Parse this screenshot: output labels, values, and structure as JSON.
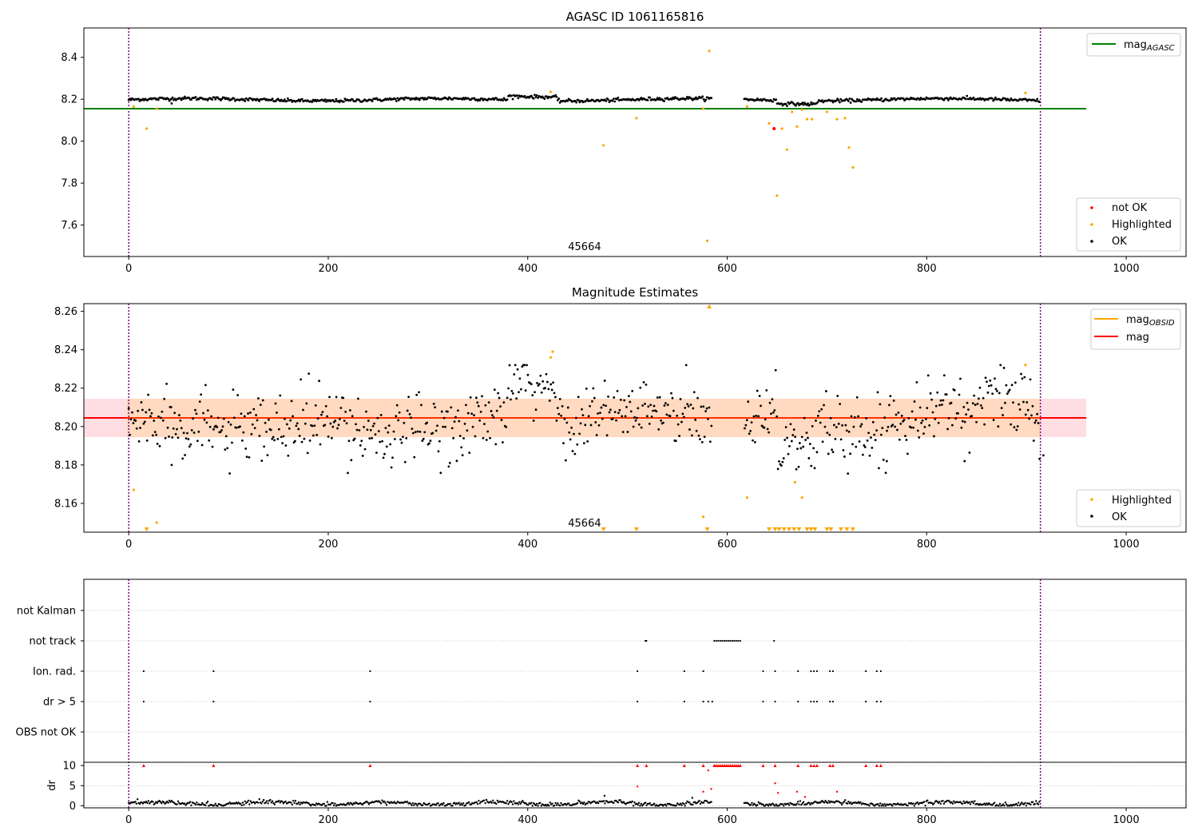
{
  "colors": {
    "ok": "#000000",
    "not_ok": "#ff0000",
    "highlighted": "#ffa500",
    "agasc_line": "#008000",
    "mag_line": "#ff0000",
    "mag_obsid_line": "#ffa500",
    "band_fill": "#ffb6c1",
    "band_fill2": "#ffd8b0",
    "vline": "#800080",
    "grid": "#b0b0b0"
  },
  "chart_data": [
    {
      "type": "scatter",
      "title": "AGASC ID 1061165816",
      "xlim": [
        -45,
        1060
      ],
      "ylim": [
        7.45,
        8.54
      ],
      "x_ticks": [
        "0",
        "200",
        "400",
        "600",
        "800",
        "1000"
      ],
      "x_tick_values": [
        0,
        200,
        400,
        600,
        800,
        1000
      ],
      "y_ticks": [
        "7.6",
        "7.8",
        "8.0",
        "8.2",
        "8.4"
      ],
      "y_tick_values": [
        7.6,
        7.8,
        8.0,
        8.2,
        8.4
      ],
      "vlines": [
        0,
        914
      ],
      "annotation": {
        "text": "45664",
        "x": 457,
        "y": 7.48
      },
      "hlines": [
        {
          "name": "mag",
          "subscript": "AGASC",
          "y": 8.155,
          "xmin": -45,
          "xmax": 960,
          "color": "#008000"
        }
      ],
      "legend_lines": [
        {
          "name": "mag",
          "subscript": "AGASC",
          "color": "#008000"
        }
      ],
      "legend_points": [
        {
          "name": "not OK",
          "color": "#ff0000"
        },
        {
          "name": "Highlighted",
          "color": "#ffa500"
        },
        {
          "name": "OK",
          "color": "#000000"
        }
      ],
      "series": [
        {
          "key": "highlighted",
          "x": [
            5,
            18,
            28,
            423,
            476,
            509,
            576,
            582,
            580,
            620,
            642,
            650,
            655,
            660,
            665,
            670,
            675,
            680,
            685,
            700,
            710,
            718,
            722,
            726,
            899
          ],
          "y": [
            8.165,
            8.06,
            8.155,
            8.235,
            7.98,
            8.11,
            8.155,
            8.43,
            7.525,
            8.165,
            8.085,
            7.74,
            8.06,
            7.96,
            8.14,
            8.07,
            8.15,
            8.105,
            8.105,
            8.14,
            8.105,
            8.11,
            7.97,
            7.875,
            8.23
          ]
        },
        {
          "key": "not_ok",
          "x": [
            647
          ],
          "y": [
            8.06
          ]
        }
      ]
    },
    {
      "type": "scatter",
      "title": "Magnitude Estimates",
      "xlim": [
        -45,
        1060
      ],
      "ylim": [
        8.145,
        8.264
      ],
      "x_ticks": [
        "0",
        "200",
        "400",
        "600",
        "800",
        "1000"
      ],
      "x_tick_values": [
        0,
        200,
        400,
        600,
        800,
        1000
      ],
      "y_ticks": [
        "8.16",
        "8.18",
        "8.20",
        "8.22",
        "8.24",
        "8.26"
      ],
      "y_tick_values": [
        8.16,
        8.18,
        8.2,
        8.22,
        8.24,
        8.26
      ],
      "vlines": [
        0,
        914
      ],
      "annotation": {
        "text": "45664",
        "x": 457,
        "y": 8.148
      },
      "mag_line": {
        "y": 8.2045,
        "xmin": -45,
        "xmax": 960
      },
      "band": {
        "y0": 8.1945,
        "y1": 8.2145,
        "xmin": -45,
        "xmax": 960
      },
      "band_inner": {
        "y0": 8.1945,
        "y1": 8.2145,
        "xmin": -2,
        "xmax": 914
      },
      "legend_lines": [
        {
          "name": "mag",
          "subscript": "OBSID",
          "color": "#ffa500"
        },
        {
          "name": "mag",
          "subscript": "",
          "color": "#ff0000"
        }
      ],
      "legend_points": [
        {
          "name": "Highlighted",
          "color": "#ffa500"
        },
        {
          "name": "OK",
          "color": "#000000"
        }
      ],
      "highlighted_points": {
        "x": [
          5,
          28,
          423,
          425,
          576,
          620,
          668,
          675,
          899
        ],
        "y": [
          8.167,
          8.15,
          8.236,
          8.239,
          8.153,
          8.163,
          8.171,
          8.163,
          8.232
        ]
      },
      "low_markers_x": [
        18,
        476,
        509,
        580,
        642,
        648,
        652,
        657,
        662,
        667,
        672,
        680,
        684,
        688,
        700,
        704,
        714,
        720,
        726
      ],
      "high_markers_x": [
        582
      ]
    },
    {
      "type": "scatter",
      "title": "",
      "xlim": [
        -45,
        1060
      ],
      "x_ticks": [
        "0",
        "200",
        "400",
        "600",
        "800",
        "1000"
      ],
      "x_tick_values": [
        0,
        200,
        400,
        600,
        800,
        1000
      ],
      "vlines": [
        0,
        914
      ],
      "flag_rows": [
        "not Kalman",
        "not track",
        "Ion. rad.",
        "dr > 5",
        "OBS not OK"
      ],
      "flags": {
        "not track": [
          518,
          519,
          587,
          589,
          591,
          593,
          595,
          597,
          599,
          601,
          603,
          605,
          607,
          609,
          611,
          613,
          647
        ],
        "Ion. rad.": [
          15,
          85,
          242,
          510,
          557,
          576,
          636,
          648,
          671,
          684,
          687,
          690,
          703,
          706,
          739,
          750,
          754
        ],
        "dr > 5": [
          15,
          85,
          242,
          510,
          557,
          576,
          581,
          585,
          636,
          648,
          671,
          684,
          687,
          690,
          703,
          706,
          739,
          750,
          754
        ]
      },
      "dr_panel": {
        "ylabel": "dr",
        "ylim": [
          -0.5,
          10.8
        ],
        "y_ticks": [
          "0",
          "5",
          "10"
        ],
        "y_tick_values": [
          0,
          5,
          10
        ],
        "capped_x": [
          15,
          85,
          242,
          510,
          519,
          557,
          576,
          587,
          589,
          591,
          593,
          595,
          597,
          599,
          601,
          603,
          605,
          607,
          609,
          611,
          613,
          636,
          648,
          671,
          684,
          687,
          690,
          703,
          706,
          739,
          750,
          754
        ],
        "outliers": {
          "x": [
            510,
            576,
            581,
            584,
            648,
            651,
            670,
            678,
            710,
            477,
            565
          ],
          "y": [
            4.8,
            3.5,
            8.8,
            4.2,
            5.6,
            3.2,
            3.5,
            2.2,
            3.5,
            2.5,
            2.0
          ]
        }
      }
    }
  ]
}
